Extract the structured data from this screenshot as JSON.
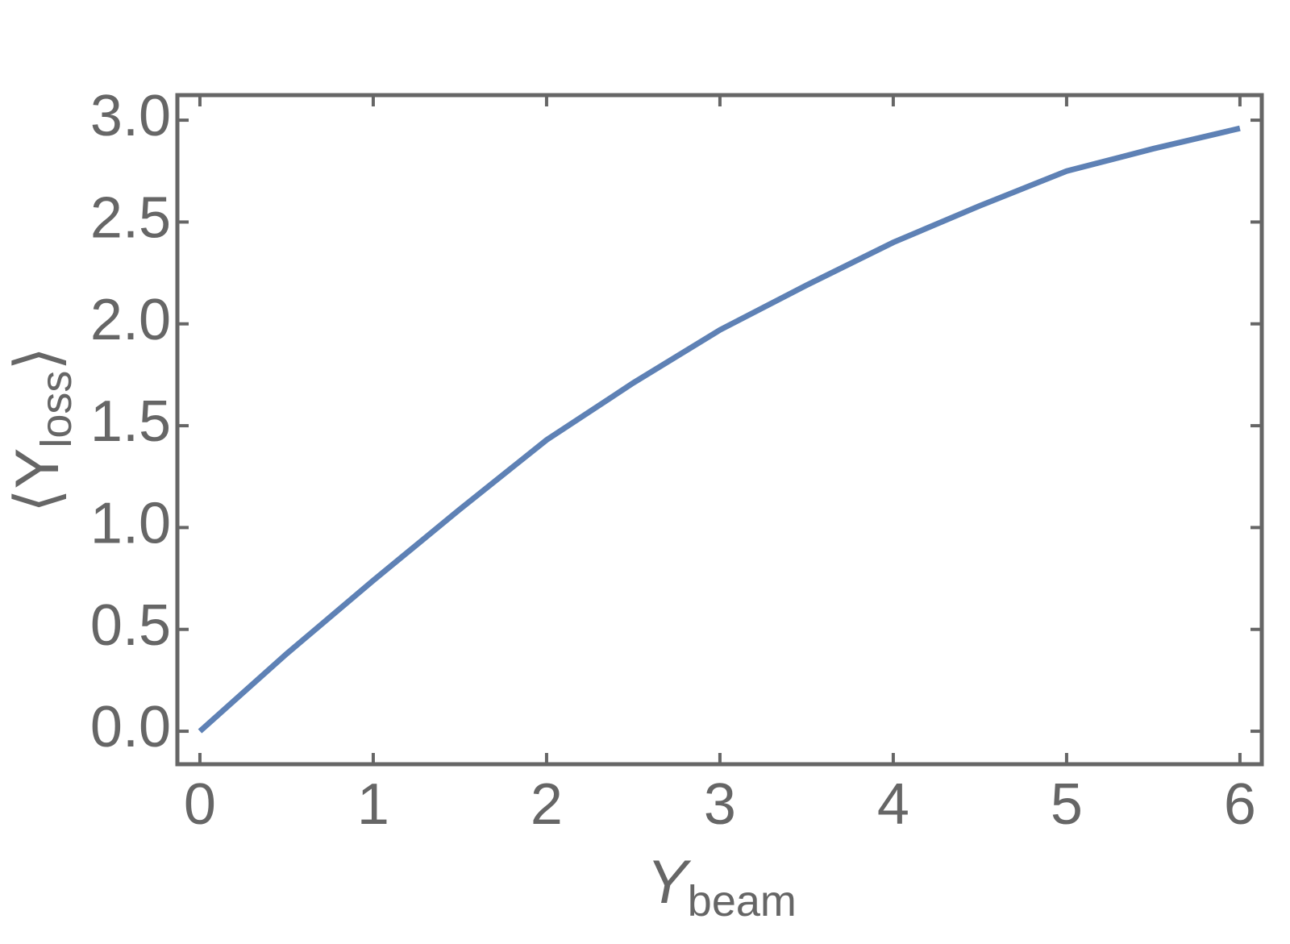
{
  "chart_data": {
    "type": "line",
    "xlabel": {
      "main": "Y",
      "sub": "beam"
    },
    "ylabel": {
      "open": "⟨Y",
      "sub": "loss",
      "close": "⟩"
    },
    "x": [
      0,
      0.5,
      1,
      1.5,
      2,
      2.5,
      3,
      3.5,
      4,
      4.5,
      5,
      5.5,
      6
    ],
    "series": [
      {
        "color": "#5e81b5",
        "values": [
          0,
          0.38,
          0.74,
          1.09,
          1.43,
          1.71,
          1.97,
          2.19,
          2.4,
          2.58,
          2.75,
          2.86,
          2.96
        ]
      }
    ],
    "xlim": [
      -0.13,
      6.126
    ],
    "ylim": [
      -0.162,
      3.123
    ],
    "xticks": [
      0,
      1,
      2,
      3,
      4,
      5,
      6
    ],
    "yticks": [
      {
        "value": 0,
        "label": "0.0"
      },
      {
        "value": 0.5,
        "label": "0.5"
      },
      {
        "value": 1,
        "label": "1.0"
      },
      {
        "value": 1.5,
        "label": "1.5"
      },
      {
        "value": 2,
        "label": "2.0"
      },
      {
        "value": 2.5,
        "label": "2.5"
      },
      {
        "value": 3,
        "label": "3.0"
      }
    ],
    "grid": false
  }
}
